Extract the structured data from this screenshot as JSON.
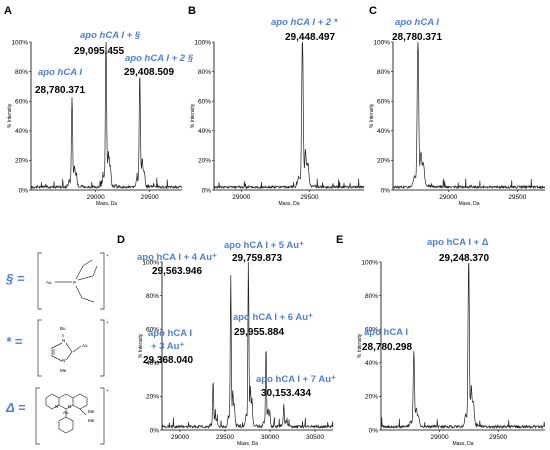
{
  "colors": {
    "annotation": "#4f7fd0",
    "trace": "#222222"
  },
  "legend": [
    {
      "symbol": "§ ="
    },
    {
      "symbol": "* ="
    },
    {
      "symbol": "Δ ="
    }
  ],
  "structure_labels": {
    "au": "Au",
    "bu": "Bu",
    "me": "Me",
    "n": "N",
    "p": "P"
  },
  "chart_data": [
    {
      "panel": "A",
      "type": "line",
      "ylabel": "% Intensity",
      "xlabel": "Mass, Da",
      "xlim": [
        28400,
        29800
      ],
      "ylim": [
        0,
        100
      ],
      "x_ticks": [
        "29000",
        "29500"
      ],
      "y_ticks": [
        "0%",
        "20%",
        "40%",
        "60%",
        "80%",
        "100%"
      ],
      "peaks": [
        {
          "mass": 28780.371,
          "intensity": 61
        },
        {
          "mass": 29095.455,
          "intensity": 100
        },
        {
          "mass": 29408.509,
          "intensity": 76
        }
      ],
      "annotations": [
        {
          "name": "apo hCA I",
          "value": "28,780.371"
        },
        {
          "name": "apo hCA I + §",
          "value": "29,095.455"
        },
        {
          "name": "apo hCA I + 2 §",
          "value": "29,408.509"
        }
      ]
    },
    {
      "panel": "B",
      "type": "line",
      "ylabel": "% Intensity",
      "xlabel": "Mass, Da",
      "xlim": [
        28800,
        29900
      ],
      "ylim": [
        0,
        100
      ],
      "x_ticks": [
        "29000",
        "29500"
      ],
      "y_ticks": [
        "0%",
        "20%",
        "40%",
        "60%",
        "80%",
        "100%"
      ],
      "peaks": [
        {
          "mass": 29448.497,
          "intensity": 100
        }
      ],
      "annotations": [
        {
          "name": "apo hCA I + 2 *",
          "value": "29,448.497"
        }
      ]
    },
    {
      "panel": "C",
      "type": "line",
      "ylabel": "% Intensity",
      "xlabel": "Mass, Da",
      "xlim": [
        28600,
        29700
      ],
      "ylim": [
        0,
        100
      ],
      "x_ticks": [
        "29000",
        "29500"
      ],
      "y_ticks": [
        "0%",
        "20%",
        "40%",
        "60%",
        "80%",
        "100%"
      ],
      "peaks": [
        {
          "mass": 28780.371,
          "intensity": 100
        }
      ],
      "annotations": [
        {
          "name": "apo hCA I",
          "value": "28,780.371"
        }
      ]
    },
    {
      "panel": "D",
      "type": "line",
      "ylabel": "% Intensity",
      "xlabel": "Mass, Da",
      "xlim": [
        28800,
        30700
      ],
      "ylim": [
        0,
        100
      ],
      "x_ticks": [
        "29000",
        "29500",
        "30000",
        "30500"
      ],
      "y_ticks": [
        "0%",
        "20%",
        "40%",
        "60%",
        "80%",
        "100%"
      ],
      "peaks": [
        {
          "mass": 29368.04,
          "intensity": 27
        },
        {
          "mass": 29563.946,
          "intensity": 87
        },
        {
          "mass": 29759.873,
          "intensity": 100
        },
        {
          "mass": 29955.884,
          "intensity": 47
        },
        {
          "mass": 30153.434,
          "intensity": 13
        }
      ],
      "annotations": [
        {
          "name": "apo hCA I + 4 Au⁺",
          "value": "29,563.946"
        },
        {
          "name": "apo hCA I + 5 Au⁺",
          "value": "29,759.873"
        },
        {
          "name": "apo hCA I",
          "name2": "+ 3 Au⁺",
          "value": "29,368.040"
        },
        {
          "name": "apo hCA I + 6 Au⁺",
          "value": "29,955.884"
        },
        {
          "name": "apo hCA I + 7 Au⁺",
          "value": "30,153.434"
        }
      ]
    },
    {
      "panel": "E",
      "type": "line",
      "ylabel": "% Intensity",
      "xlabel": "Mass, Da",
      "xlim": [
        28500,
        29900
      ],
      "ylim": [
        0,
        100
      ],
      "x_ticks": [
        "29000",
        "29500"
      ],
      "y_ticks": [
        "0%",
        "20%",
        "40%",
        "60%",
        "80%",
        "100%"
      ],
      "peaks": [
        {
          "mass": 28780.298,
          "intensity": 45
        },
        {
          "mass": 29248.37,
          "intensity": 100
        }
      ],
      "annotations": [
        {
          "name": "apo hCA I + Δ",
          "value": "29,248.370"
        },
        {
          "name": "apo hCA I",
          "value": "28,780.298"
        }
      ]
    }
  ]
}
